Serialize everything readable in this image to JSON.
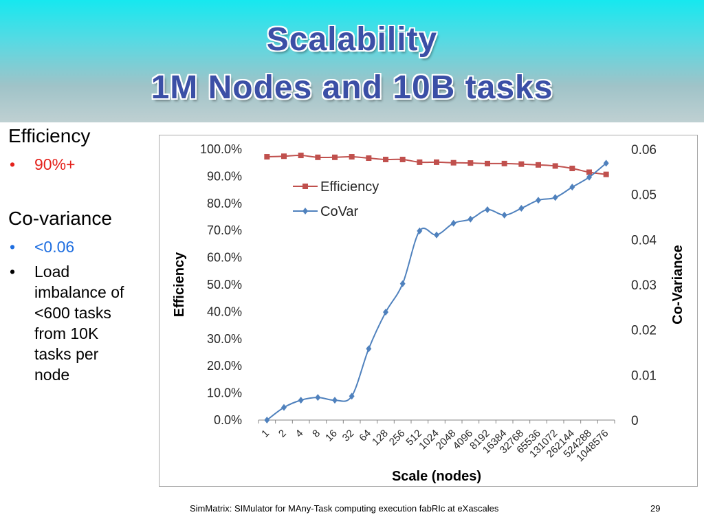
{
  "slide": {
    "title_line1": "Scalability",
    "title_line2": "1M Nodes and 10B tasks",
    "footer": "SimMatrix: SIMulator for MAny-Task computing execution fabRIc at eXascales",
    "page_number": "29"
  },
  "left_text": {
    "heading1": "Efficiency",
    "bullet1": "90%+",
    "heading2": "Co-variance",
    "bullet2": "<0.06",
    "bullet3_lines": [
      "Load",
      "imbalance of",
      "<600 tasks",
      "from 10K",
      "tasks per",
      "node"
    ]
  },
  "colors": {
    "title": "#3b4fa6",
    "efficiency_series": "#c0504d",
    "covar_series": "#4f81bd",
    "bullet_red": "#e4211b",
    "bullet_blue": "#1e6ee0"
  },
  "chart_data": {
    "type": "line",
    "xlabel": "Scale (nodes)",
    "ylabel": "Efficiency",
    "y2label": "Co-Variance",
    "categories": [
      "1",
      "2",
      "4",
      "8",
      "16",
      "32",
      "64",
      "128",
      "256",
      "512",
      "1024",
      "2048",
      "4096",
      "8192",
      "16384",
      "32768",
      "65536",
      "131072",
      "262144",
      "524288",
      "1048576"
    ],
    "ylim": [
      0,
      100
    ],
    "y_ticks": [
      "0.0%",
      "10.0%",
      "20.0%",
      "30.0%",
      "40.0%",
      "50.0%",
      "60.0%",
      "70.0%",
      "80.0%",
      "90.0%",
      "100.0%"
    ],
    "y2lim": [
      0,
      0.06
    ],
    "y2_ticks": [
      "0",
      "0.01",
      "0.02",
      "0.03",
      "0.04",
      "0.05",
      "0.06"
    ],
    "legend": "inside-top-left",
    "grid": false,
    "series": [
      {
        "name": "Efficiency",
        "axis": "left",
        "marker": "square",
        "values": [
          97.2,
          97.4,
          97.7,
          97.0,
          97.0,
          97.2,
          96.7,
          96.2,
          96.2,
          95.2,
          95.2,
          95.0,
          94.9,
          94.7,
          94.7,
          94.5,
          94.2,
          93.8,
          92.9,
          91.5,
          90.7
        ]
      },
      {
        "name": "CoVar",
        "axis": "right",
        "marker": "diamond",
        "values": [
          0.0,
          0.0028,
          0.0044,
          0.005,
          0.0044,
          0.0053,
          0.0158,
          0.0239,
          0.0302,
          0.0419,
          0.041,
          0.0436,
          0.0445,
          0.0466,
          0.0454,
          0.0469,
          0.0487,
          0.0493,
          0.0516,
          0.0538,
          0.0569
        ]
      }
    ]
  }
}
